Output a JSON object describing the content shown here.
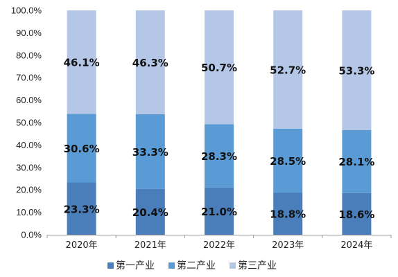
{
  "chart_data": {
    "type": "bar",
    "stacked": true,
    "categories": [
      "2020年",
      "2021年",
      "2022年",
      "2023年",
      "2024年"
    ],
    "series": [
      {
        "name": "第一产业",
        "values": [
          23.3,
          20.4,
          21.0,
          18.8,
          18.6
        ],
        "labels": [
          "23.3%",
          "20.4%",
          "21.0%",
          "18.8%",
          "18.6%"
        ],
        "color": "#4A7EBB"
      },
      {
        "name": "第二产业",
        "values": [
          30.6,
          33.3,
          28.3,
          28.5,
          28.1
        ],
        "labels": [
          "30.6%",
          "33.3%",
          "28.3%",
          "28.5%",
          "28.1%"
        ],
        "color": "#5B9BD5"
      },
      {
        "name": "第三产业",
        "values": [
          46.1,
          46.3,
          50.7,
          52.7,
          53.3
        ],
        "labels": [
          "46.1%",
          "46.3%",
          "50.7%",
          "52.7%",
          "53.3%"
        ],
        "color": "#B4C7E7"
      }
    ],
    "ylim": [
      0,
      100
    ],
    "yticks": [
      "0.0%",
      "10.0%",
      "20.0%",
      "30.0%",
      "40.0%",
      "50.0%",
      "60.0%",
      "70.0%",
      "80.0%",
      "90.0%",
      "100.0%"
    ],
    "grid": false,
    "legend": "bottom"
  }
}
